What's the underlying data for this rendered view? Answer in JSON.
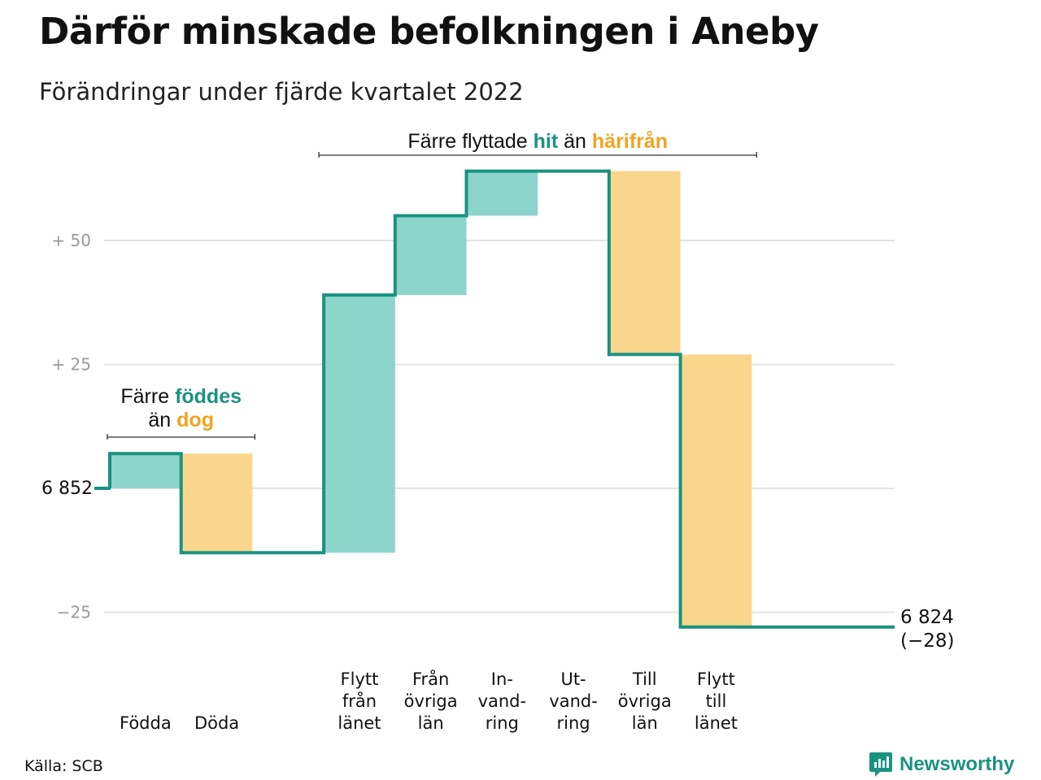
{
  "header": {
    "title": "Därför minskade befolkningen i Aneby",
    "subtitle": "Förändringar under fjärde kvartalet 2022"
  },
  "colors": {
    "increase": "#8dd4cb",
    "decrease": "#fad68c",
    "line": "#1a9281",
    "grid": "#e4e4e4"
  },
  "chart_data": {
    "type": "waterfall",
    "baseline": 6852,
    "baseline_label": "6 852",
    "ylim": [
      -32,
      67
    ],
    "yticks": [
      {
        "value": 50,
        "label": "+ 50"
      },
      {
        "value": 25,
        "label": "+ 25"
      },
      {
        "value": 0,
        "label": "6 852"
      },
      {
        "value": -25,
        "label": "−25"
      }
    ],
    "categories": [
      {
        "key": "fodda",
        "lines": [
          "Födda"
        ],
        "change": 7
      },
      {
        "key": "doda",
        "lines": [
          "Döda"
        ],
        "change": -20
      },
      {
        "key": "gap",
        "lines": [],
        "change": 0
      },
      {
        "key": "flytt-fran-lanet",
        "lines": [
          "Flytt",
          "från",
          "länet"
        ],
        "change": 52
      },
      {
        "key": "fran-ovriga-lan",
        "lines": [
          "Från",
          "övriga",
          "län"
        ],
        "change": 16
      },
      {
        "key": "invandring",
        "lines": [
          "In-",
          "vand-",
          "ring"
        ],
        "change": 9
      },
      {
        "key": "utvandring",
        "lines": [
          "Ut-",
          "vand-",
          "ring"
        ],
        "change": 0
      },
      {
        "key": "till-ovriga-lan",
        "lines": [
          "Till",
          "övriga",
          "län"
        ],
        "change": -37
      },
      {
        "key": "flytt-till-lanet",
        "lines": [
          "Flytt",
          "till",
          "länet"
        ],
        "change": -55
      }
    ],
    "end": {
      "value": 6824,
      "label": "6 824",
      "change_label": "(−28)"
    },
    "annotations": [
      {
        "key": "births",
        "line1": {
          "pre": "Färre ",
          "hl1": "föddes",
          "post": ""
        },
        "line2": {
          "pre": "än ",
          "hl2": "dog"
        },
        "span": [
          "fodda",
          "doda"
        ]
      },
      {
        "key": "moves",
        "line1": {
          "pre": "Färre flyttade ",
          "hl1": "hit",
          "mid": " än ",
          "hl2": "härifrån"
        },
        "span": [
          "flytt-fran-lanet",
          "flytt-till-lanet"
        ]
      }
    ]
  },
  "footer": {
    "source": "Källa: SCB",
    "brand": "Newsworthy"
  }
}
